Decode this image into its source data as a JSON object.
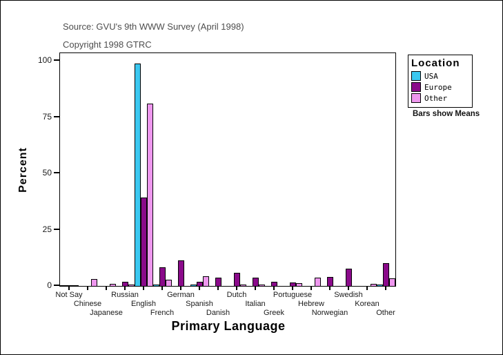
{
  "header": {
    "source_line": "Source: GVU's 9th WWW Survey (April 1998)",
    "copyright_line": "Copyright 1998 GTRC"
  },
  "legend": {
    "title": "Location",
    "note": "Bars show Means",
    "items": [
      {
        "label": "USA",
        "color": "#3BC8F0"
      },
      {
        "label": "Europe",
        "color": "#8A0A8A"
      },
      {
        "label": "Other",
        "color": "#EE97EE"
      }
    ]
  },
  "chart_data": {
    "type": "bar",
    "title": "",
    "xlabel": "Primary Language",
    "ylabel": "Percent",
    "ylim": [
      0,
      100
    ],
    "yticks": [
      0,
      25,
      50,
      75,
      100
    ],
    "grid": false,
    "legend_position": "right",
    "bars_show": "Means",
    "categories": [
      "Not Say",
      "Chinese",
      "Japanese",
      "Russian",
      "English",
      "French",
      "German",
      "Spanish",
      "Danish",
      "Dutch",
      "Italian",
      "Greek",
      "Portuguese",
      "Hebrew",
      "Norwegian",
      "Swedish",
      "Korean",
      "Other"
    ],
    "series": [
      {
        "name": "USA",
        "color": "#3BC8F0",
        "values": [
          0.4,
          0,
          0,
          0,
          98.8,
          0.5,
          0,
          0.5,
          0,
          0,
          0,
          0,
          0,
          0,
          0,
          0,
          0,
          0.6
        ]
      },
      {
        "name": "Europe",
        "color": "#8A0A8A",
        "values": [
          0.3,
          0,
          0,
          1.7,
          39.3,
          8.3,
          11.5,
          1.7,
          3.7,
          5.8,
          3.7,
          1.7,
          1.4,
          0,
          4.0,
          7.7,
          0,
          10.0
        ]
      },
      {
        "name": "Other",
        "color": "#EE97EE",
        "values": [
          0.4,
          3.0,
          0.8,
          0.5,
          81.0,
          2.8,
          0,
          4.2,
          0,
          0.5,
          0.5,
          0,
          1.2,
          3.6,
          0,
          0,
          1.0,
          3.5
        ]
      }
    ]
  }
}
